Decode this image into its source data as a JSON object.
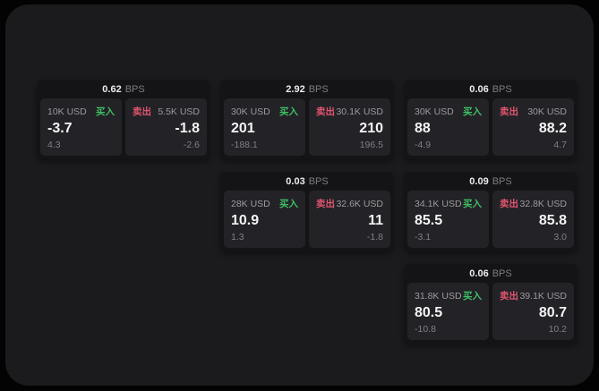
{
  "labels": {
    "buy": "买入",
    "sell": "卖出",
    "bps_unit": "BPS"
  },
  "colors": {
    "buy_green": "#3fbf63",
    "sell_rose": "#e0556f",
    "panel_bg": "#1b1b1d",
    "card_bg": "#141416",
    "subpanel_bg": "#232327"
  },
  "cards": [
    {
      "bps": "0.62",
      "buy": {
        "amount": "10K USD",
        "value": "-3.7",
        "change": "4.3"
      },
      "sell": {
        "amount": "5.5K USD",
        "value": "-1.8",
        "change": "-2.6"
      }
    },
    {
      "bps": "2.92",
      "buy": {
        "amount": "30K USD",
        "value": "201",
        "change": "-188.1"
      },
      "sell": {
        "amount": "30.1K USD",
        "value": "210",
        "change": "196.5"
      }
    },
    {
      "bps": "0.06",
      "buy": {
        "amount": "30K USD",
        "value": "88",
        "change": "-4.9"
      },
      "sell": {
        "amount": "30K USD",
        "value": "88.2",
        "change": "4.7"
      }
    },
    {
      "bps": "0.03",
      "buy": {
        "amount": "28K USD",
        "value": "10.9",
        "change": "1.3"
      },
      "sell": {
        "amount": "32.6K USD",
        "value": "11",
        "change": "-1.8"
      }
    },
    {
      "bps": "0.09",
      "buy": {
        "amount": "34.1K USD",
        "value": "85.5",
        "change": "-3.1"
      },
      "sell": {
        "amount": "32.8K USD",
        "value": "85.8",
        "change": "3.0"
      }
    },
    {
      "bps": "0.06",
      "buy": {
        "amount": "31.8K USD",
        "value": "80.5",
        "change": "-10.8"
      },
      "sell": {
        "amount": "39.1K USD",
        "value": "80.7",
        "change": "10.2"
      }
    }
  ]
}
